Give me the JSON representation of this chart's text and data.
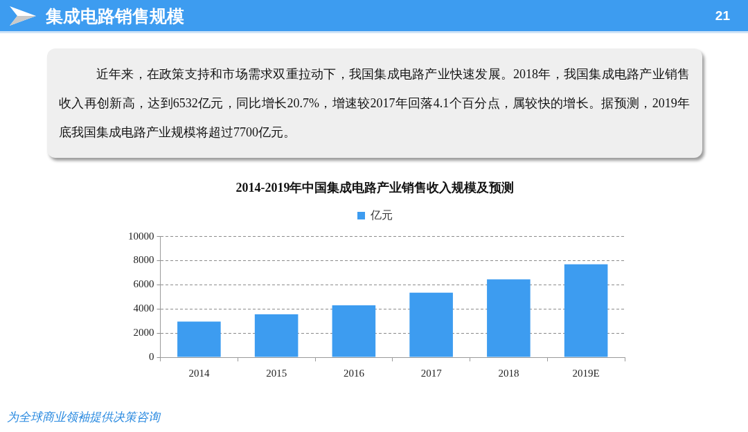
{
  "chart_data": {
    "type": "bar",
    "title": "2014-2019年中国集成电路产业销售收入规模及预测",
    "categories": [
      "2014",
      "2015",
      "2016",
      "2017",
      "2018",
      "2019E"
    ],
    "series": [
      {
        "name": "亿元",
        "color": "#3d9cf0",
        "values": [
          2950,
          3550,
          4300,
          5350,
          6450,
          7700
        ]
      }
    ],
    "ylim": [
      0,
      10000
    ],
    "yticks": [
      0,
      2000,
      4000,
      6000,
      8000,
      10000
    ],
    "grid": "y",
    "legend": "top",
    "annotations": [
      "集成电路销售规模",
      "21",
      "近年来，在政策支持和市场需求双重拉动下，我国集成电路产业快速发展。2018年，我国集成电路产业销售收入再创新高，达到6532亿元，同比增长20.7%，增速较2017年回落4.1个百分点，属较快的增长。据预测，2019年底我国集成电路产业规模将超过7700亿元。",
      "为全球商业领袖提供决策咨询"
    ]
  }
}
